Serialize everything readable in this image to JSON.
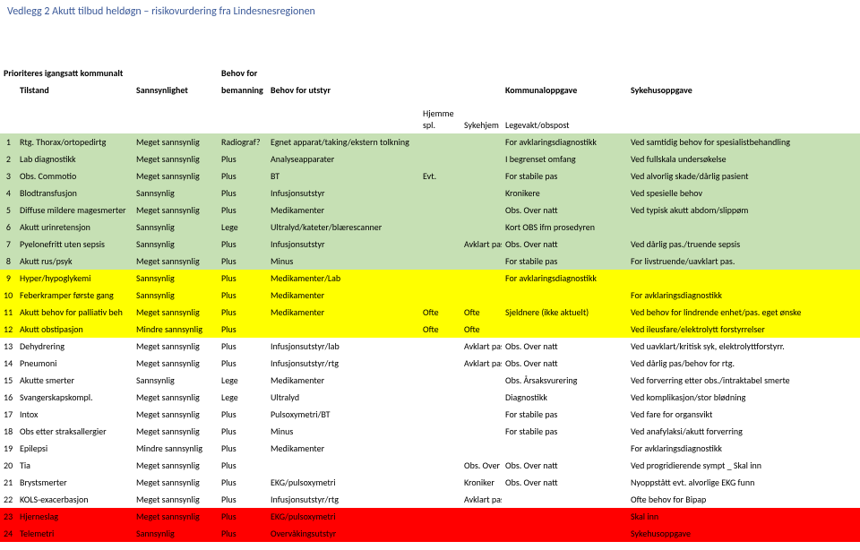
{
  "title": "Vedlegg 2 Akutt tilbud heldøgn – risikovurdering fra Lindesnesregionen",
  "colors": {
    "titleColor": "#3b5998",
    "green": "#c6e0b4",
    "yellow": "#ffff00",
    "red": "#ff0000",
    "white": "#ffffff"
  },
  "header": {
    "line1_col1": "Prioriteres igangsatt kommunalt",
    "line1_col4a": "Behov for",
    "col_tilstand": "Tilstand",
    "col_sann": "Sannsynlighet",
    "col_bem": "bemanning",
    "col_utstyr": "Behov for utstyr",
    "col_komm": "Kommunaloppgave",
    "col_syk": "Sykehusoppgave",
    "sub_h1": "Hjemme spl.",
    "sub_h2": "Sykehjem",
    "sub_h3": "Legevakt/obspost"
  },
  "rows": [
    {
      "n": "1",
      "cls": "row-green",
      "tilstand": "Rtg. Thorax/ortopedirtg",
      "sann": "Meget sannsynlig",
      "bem": "Radiograf?",
      "utstyr": "Egnet apparat/taking/ekstern tolkning",
      "h1": "",
      "h2": "",
      "komm": "For avklaringsdiagnostikk",
      "syk": "Ved samtidig behov for spesialistbehandling"
    },
    {
      "n": "2",
      "cls": "row-green",
      "tilstand": "Lab diagnostikk",
      "sann": "Meget sannsynlig",
      "bem": "Plus",
      "utstyr": "Analyseapparater",
      "h1": "",
      "h2": "",
      "komm": "I begrenset omfang",
      "syk": "Ved fullskala undersøkelse"
    },
    {
      "n": "3",
      "cls": "row-green",
      "tilstand": "Obs. Commotio",
      "sann": "Meget sannsynlig",
      "bem": "Plus",
      "utstyr": "BT",
      "h1": "Evt.",
      "h2": "",
      "komm": "For stabile pas",
      "syk": "Ved alvorlig skade/dårlig pasient"
    },
    {
      "n": "4",
      "cls": "row-green",
      "tilstand": "Blodtransfusjon",
      "sann": "Sannsynlig",
      "bem": "Plus",
      "utstyr": "Infusjonsutstyr",
      "h1": "",
      "h2": "",
      "komm": "Kronikere",
      "syk": "Ved spesielle behov"
    },
    {
      "n": "5",
      "cls": "row-green",
      "tilstand": "Diffuse mildere magesmerter",
      "sann": "Meget sannsynlig",
      "bem": "Plus",
      "utstyr": "Medikamenter",
      "h1": "",
      "h2": "",
      "komm": "Obs. Over natt",
      "syk": "Ved typisk akutt abdom/slippøm"
    },
    {
      "n": "6",
      "cls": "row-green",
      "tilstand": "Akutt urinretensjon",
      "sann": "Sannsynlig",
      "bem": "Lege",
      "utstyr": "Ultralyd/kateter/blærescanner",
      "h1": "",
      "h2": "",
      "komm": "Kort OBS ifm prosedyren",
      "syk": ""
    },
    {
      "n": "7",
      "cls": "row-green",
      "tilstand": "Pyelonefritt uten sepsis",
      "sann": "Sannsynlig",
      "bem": "Plus",
      "utstyr": "Infusjonsutstyr",
      "h1": "",
      "h2": "Avklart pas",
      "komm": "Obs. Over natt",
      "syk": "Ved dårlig pas./truende sepsis"
    },
    {
      "n": "8",
      "cls": "row-green",
      "tilstand": "Akutt rus/psyk",
      "sann": "Meget sannsynlig",
      "bem": "Plus",
      "utstyr": "Minus",
      "h1": "",
      "h2": "",
      "komm": "For stabile pas",
      "syk": "For livstruende/uavklart pas."
    },
    {
      "n": "9",
      "cls": "row-yellow",
      "tilstand": "Hyper/hypoglykemi",
      "sann": "Sannsynlig",
      "bem": "Plus",
      "utstyr": "Medikamenter/Lab",
      "h1": "",
      "h2": "",
      "komm": "For avklaringsdiagnostikk",
      "syk": ""
    },
    {
      "n": "10",
      "cls": "row-yellow",
      "tilstand": "Feberkramper første gang",
      "sann": "Sannsynlig",
      "bem": "Plus",
      "utstyr": "Medikamenter",
      "h1": "",
      "h2": "",
      "komm": "",
      "syk": "For avklaringsdiagnostikk"
    },
    {
      "n": "11",
      "cls": "row-yellow",
      "tilstand": "Akutt behov for palliativ beh",
      "sann": "Meget sannsynlig",
      "bem": "Plus",
      "utstyr": "Medikamenter",
      "h1": "Ofte",
      "h2": "Ofte",
      "komm": "Sjeldnere (ikke aktuelt)",
      "syk": "Ved behov for lindrende enhet/pas. eget ønske"
    },
    {
      "n": "12",
      "cls": "row-yellow",
      "tilstand": "Akutt obstipasjon",
      "sann": "Mindre sannsynlig",
      "bem": "Plus",
      "utstyr": "",
      "h1": "Ofte",
      "h2": "Ofte",
      "komm": "",
      "syk": "Ved ileusfare/elektrolytt forstyrrelser"
    },
    {
      "n": "13",
      "cls": "row-white",
      "tilstand": "Dehydrering",
      "sann": "Meget sannsynlig",
      "bem": "Plus",
      "utstyr": "Infusjonsutstyr/lab",
      "h1": "",
      "h2": "Avklart  pas",
      "komm": "Obs. Over natt",
      "syk": "Ved uavklart/kritisk syk, elektrolyttforstyrr."
    },
    {
      "n": "14",
      "cls": "row-white",
      "tilstand": "Pneumoni",
      "sann": "Meget sannsynlig",
      "bem": "Plus",
      "utstyr": "Infusjonsutstyr/rtg",
      "h1": "",
      "h2": "Avklart pas",
      "komm": "Obs. Over natt",
      "syk": "Ved dårlig pas/behov for rtg."
    },
    {
      "n": "15",
      "cls": "row-white",
      "tilstand": "Akutte smerter",
      "sann": "Sannsynlig",
      "bem": "Lege",
      "utstyr": "Medikamenter",
      "h1": "",
      "h2": "",
      "komm": "Obs. Årsaksvurering",
      "syk": "Ved forverring etter obs./intraktabel smerte"
    },
    {
      "n": "16",
      "cls": "row-white",
      "tilstand": "Svangerskapskompl.",
      "sann": "Meget sannsynlig",
      "bem": "Lege",
      "utstyr": "Ultralyd",
      "h1": "",
      "h2": "",
      "komm": "Diagnostikk",
      "syk": "Ved komplikasjon/stor blødning"
    },
    {
      "n": "17",
      "cls": "row-white",
      "tilstand": "Intox",
      "sann": "Meget sannsynlig",
      "bem": "Plus",
      "utstyr": "Pulsoxymetri/BT",
      "h1": "",
      "h2": "",
      "komm": "For stabile pas",
      "syk": "Ved fare for organsvikt"
    },
    {
      "n": "18",
      "cls": "row-white",
      "tilstand": "Obs etter straksallergier",
      "sann": "Meget sannsynlig",
      "bem": "Plus",
      "utstyr": "Minus",
      "h1": "",
      "h2": "",
      "komm": "For stabile pas",
      "syk": "Ved anafylaksi/akutt forverring"
    },
    {
      "n": "19",
      "cls": "row-white",
      "tilstand": "Epilepsi",
      "sann": "Mindre sannsynlig",
      "bem": "Plus",
      "utstyr": "Medikamenter",
      "h1": "",
      "h2": "",
      "komm": "",
      "syk": "For avklaringsdiagnostikk"
    },
    {
      "n": "20",
      "cls": "row-white",
      "tilstand": "Tia",
      "sann": "Meget sannsynlig",
      "bem": "Plus",
      "utstyr": "",
      "h1": "",
      "h2": "Obs. Over natt",
      "komm": "Obs. Over natt",
      "syk": "Ved progridierende sympt _ Skal inn"
    },
    {
      "n": "21",
      "cls": "row-white",
      "tilstand": "Brystsmerter",
      "sann": "Meget sannsynlig",
      "bem": "Plus",
      "utstyr": "EKG/pulsoxymetri",
      "h1": "",
      "h2": "Kroniker",
      "komm": "Obs. Over natt",
      "syk": "Nyoppstått evt. alvorlige EKG funn"
    },
    {
      "n": "22",
      "cls": "row-white",
      "tilstand": "KOLS-exacerbasjon",
      "sann": "Meget sannsynlig",
      "bem": "Plus",
      "utstyr": "Infusjonsutstyr/rtg",
      "h1": "",
      "h2": "Avklart pas",
      "komm": "",
      "syk": "Ofte behov for Bipap"
    },
    {
      "n": "23",
      "cls": "row-red",
      "tilstand": "Hjerneslag",
      "sann": "Meget sannsynlig",
      "bem": "Plus",
      "utstyr": "EKG/pulsoxymetri",
      "h1": "",
      "h2": "",
      "komm": "",
      "syk": "Skal inn"
    },
    {
      "n": "24",
      "cls": "row-red",
      "tilstand": "Telemetri",
      "sann": "Sannsynlig",
      "bem": "Plus",
      "utstyr": "Overvåkingsutstyr",
      "h1": "",
      "h2": "",
      "komm": "",
      "syk": "Sykehusoppgave"
    }
  ]
}
